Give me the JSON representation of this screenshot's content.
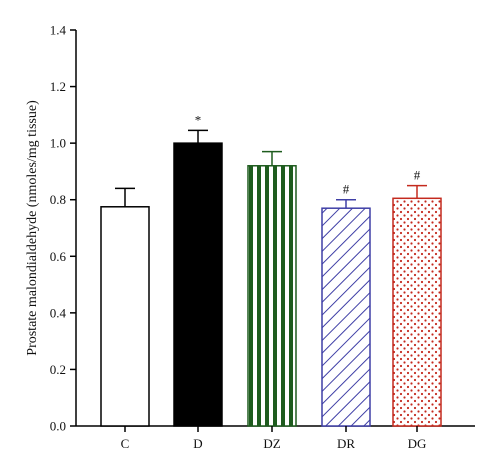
{
  "chart_data": {
    "type": "bar",
    "title": "",
    "xlabel": "",
    "ylabel": "Prostate malondialdehyde (nmoles/mg tissue)",
    "ylim": [
      0.0,
      1.4
    ],
    "yticks": [
      "0.0",
      "0.2",
      "0.4",
      "0.6",
      "0.8",
      "1.0",
      "1.2",
      "1.4"
    ],
    "categories": [
      "C",
      "D",
      "DZ",
      "DR",
      "DG"
    ],
    "values": [
      0.775,
      1.0,
      0.92,
      0.77,
      0.805
    ],
    "errors": [
      0.065,
      0.045,
      0.05,
      0.03,
      0.045
    ],
    "annotations": [
      "",
      "*",
      "",
      "#",
      "#"
    ],
    "grid": false,
    "legend": "none",
    "bar_styles": [
      {
        "fill": "none",
        "pattern": "none",
        "color": "#000000"
      },
      {
        "fill": "solid",
        "pattern": "none",
        "color": "#000000"
      },
      {
        "fill": "pattern",
        "pattern": "vertical-stripes",
        "color": "#1e5c1e"
      },
      {
        "fill": "pattern",
        "pattern": "diagonal-stripes",
        "color": "#3f3fa6"
      },
      {
        "fill": "pattern",
        "pattern": "dots",
        "color": "#c42a1e"
      }
    ]
  }
}
